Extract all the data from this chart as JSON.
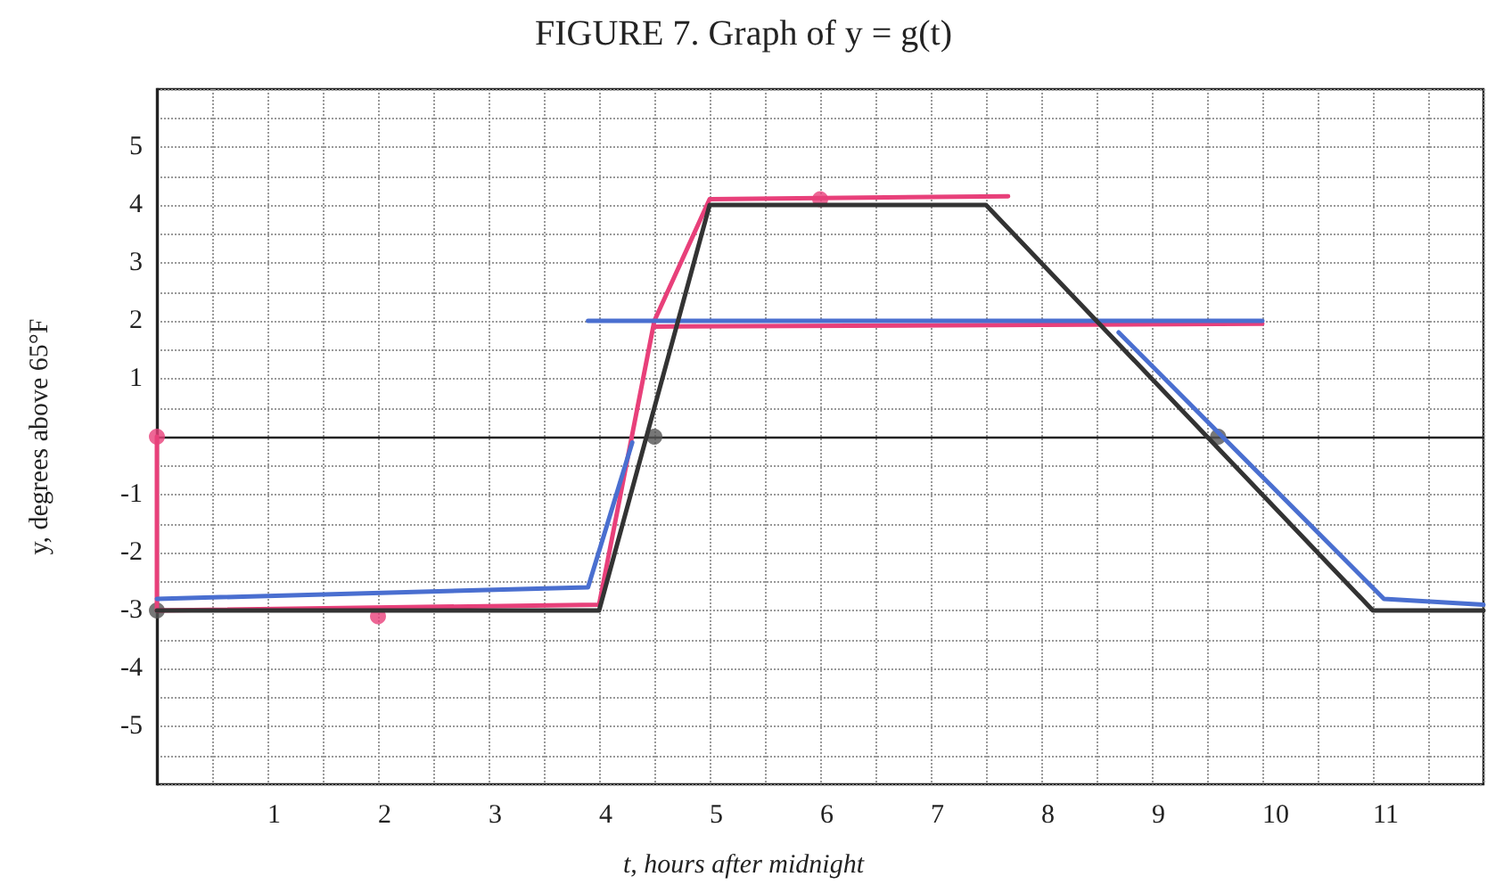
{
  "chart_data": {
    "type": "line",
    "title": "FIGURE 7. Graph of y = g(t)",
    "xlabel": "t, hours after midnight",
    "ylabel": "y, degrees above 65°F",
    "xlim": [
      0,
      12
    ],
    "ylim": [
      -6,
      6
    ],
    "xticks": [
      1,
      2,
      3,
      4,
      5,
      6,
      7,
      8,
      9,
      10,
      11
    ],
    "yticks": [
      -5,
      -4,
      -3,
      -2,
      -1,
      1,
      2,
      3,
      4,
      5
    ],
    "grid": true,
    "marker": "none",
    "line_style": "solid",
    "series": [
      {
        "color": "#e8407a",
        "x": [
          0,
          0,
          4,
          4.5,
          5,
          7.7
        ],
        "values": [
          0,
          -3,
          -2.9,
          2,
          4.1,
          4.15
        ]
      },
      {
        "color": "#e8407a",
        "x": [
          4.5,
          10
        ],
        "values": [
          1.9,
          1.95
        ]
      },
      {
        "color": "#4a6fd0",
        "x": [
          0,
          3.9,
          4.3
        ],
        "values": [
          -2.8,
          -2.6,
          -0.1
        ]
      },
      {
        "color": "#4a6fd0",
        "x": [
          3.9,
          10
        ],
        "values": [
          2,
          2
        ]
      },
      {
        "color": "#4a6fd0",
        "x": [
          8.7,
          11.1,
          12
        ],
        "values": [
          1.8,
          -2.8,
          -2.9
        ]
      },
      {
        "color": "#333333",
        "x": [
          0,
          4,
          5,
          7.5,
          11,
          12
        ],
        "values": [
          -3,
          -3,
          4,
          4,
          -3,
          -3
        ]
      },
      {
        "type": "scatter",
        "marker": "circle",
        "color": "#555555",
        "x": [
          0,
          4.5,
          9.6
        ],
        "values": [
          -3,
          0,
          0
        ]
      },
      {
        "type": "scatter",
        "marker": "circle",
        "color": "#e8407a",
        "x": [
          0,
          2,
          6
        ],
        "values": [
          0,
          -3.1,
          4.1
        ]
      }
    ]
  }
}
